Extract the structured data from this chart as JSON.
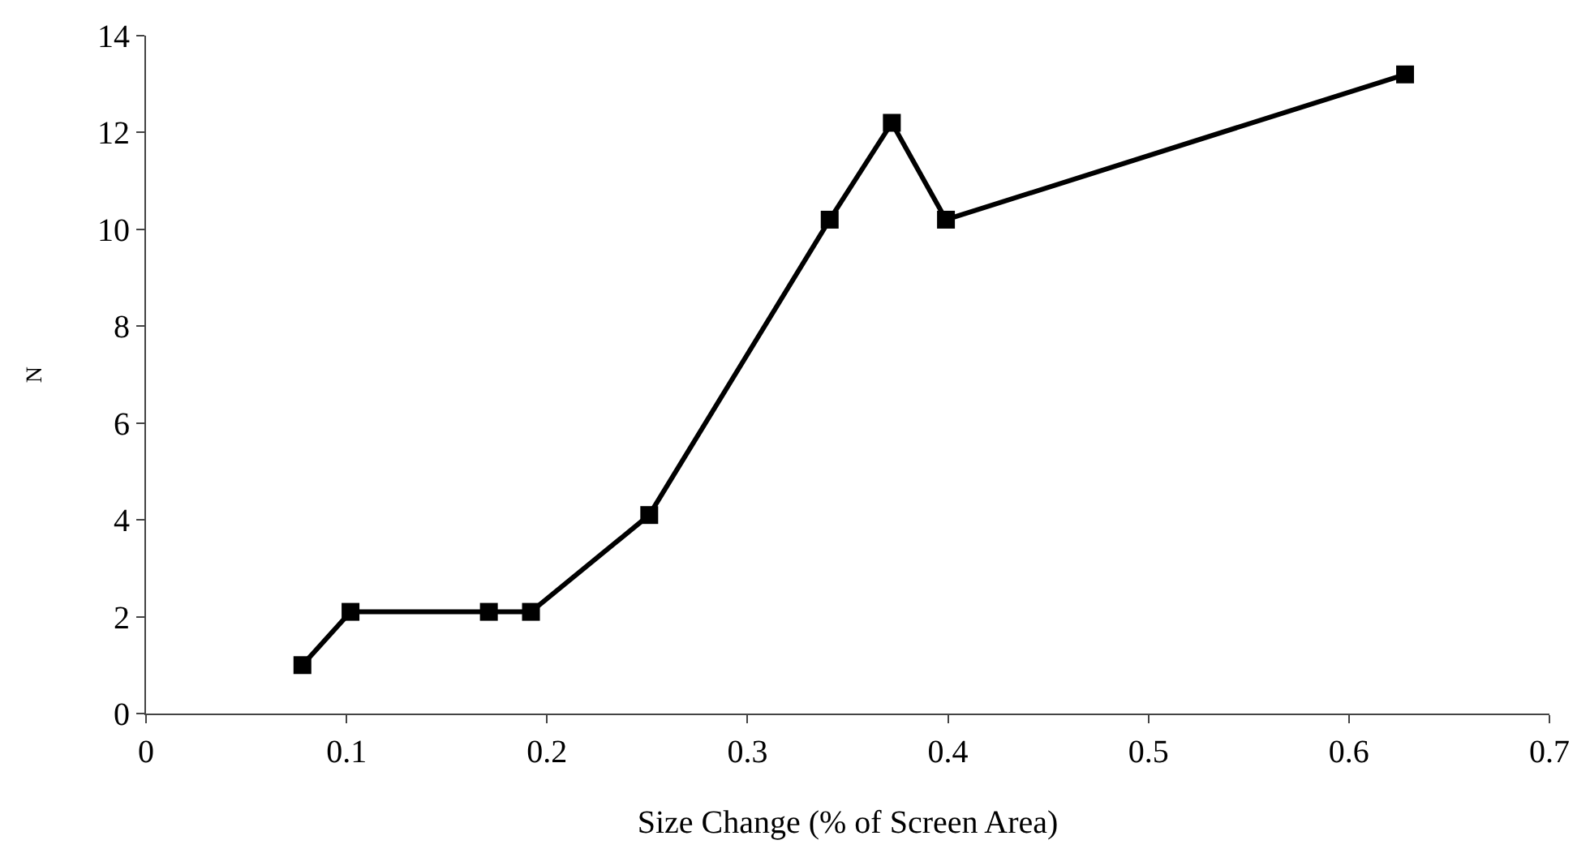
{
  "chart_data": {
    "type": "line",
    "xlabel": "Size Change (% of Screen Area)",
    "ylabel": "N",
    "x": [
      0.078,
      0.102,
      0.171,
      0.192,
      0.251,
      0.341,
      0.372,
      0.399,
      0.628
    ],
    "series": [
      {
        "color": "#000000",
        "values": [
          1.0,
          2.1,
          2.1,
          2.1,
          4.1,
          10.2,
          12.2,
          10.2,
          13.2
        ]
      }
    ],
    "xlim": [
      0,
      0.7
    ],
    "xticks": [
      0,
      0.1,
      0.2,
      0.3,
      0.4,
      0.5,
      0.6,
      0.7
    ],
    "ylim": [
      0,
      14
    ],
    "yticks": [
      0,
      2,
      4,
      6,
      8,
      10,
      12,
      14
    ],
    "marker": "square",
    "line_style": "solid"
  }
}
